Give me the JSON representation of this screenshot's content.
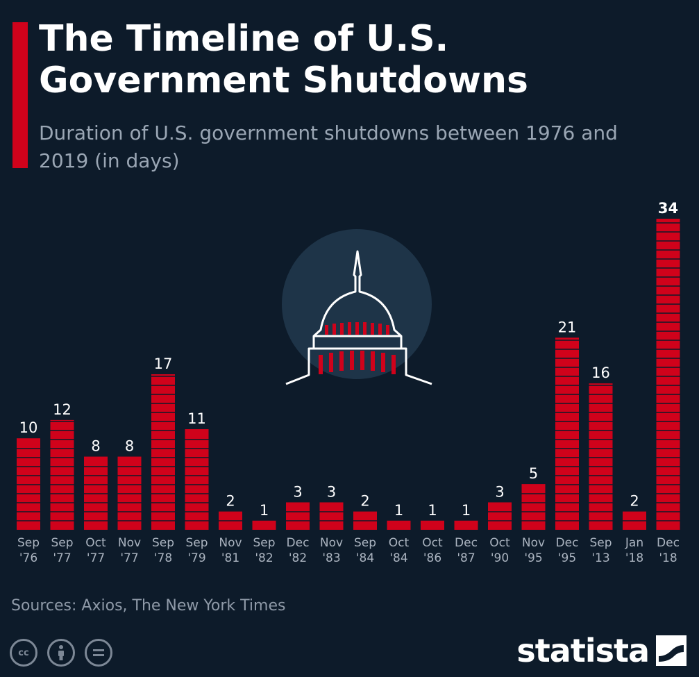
{
  "header": {
    "title": "The Timeline of U.S. Government Shutdowns",
    "subtitle": "Duration of U.S. government shutdowns between 1976 and 2019 (in days)"
  },
  "footer": {
    "source": "Sources: Axios, The New York Times",
    "brand": "statista",
    "license_icons": [
      "cc-icon",
      "person-icon",
      "equals-icon"
    ]
  },
  "colors": {
    "background": "#0d1b2a",
    "bar": "#d0021b",
    "accent": "#d0021b",
    "subtitle": "#9aa6b4"
  },
  "chart_data": {
    "type": "bar",
    "title": "The Timeline of U.S. Government Shutdowns",
    "subtitle": "Duration of U.S. government shutdowns between 1976 and 2019 (in days)",
    "xlabel": "",
    "ylabel": "",
    "categories": [
      "Sep '76",
      "Sep '77",
      "Oct '77",
      "Nov '77",
      "Sep '78",
      "Sep '79",
      "Nov '81",
      "Sep '82",
      "Dec '82",
      "Nov '83",
      "Sep '84",
      "Oct '84",
      "Oct '86",
      "Dec '87",
      "Oct '90",
      "Nov '95",
      "Dec '95",
      "Sep '13",
      "Jan '18",
      "Dec '18"
    ],
    "category_lines": [
      [
        "Sep",
        "'76"
      ],
      [
        "Sep",
        "'77"
      ],
      [
        "Oct",
        "'77"
      ],
      [
        "Nov",
        "'77"
      ],
      [
        "Sep",
        "'78"
      ],
      [
        "Sep",
        "'79"
      ],
      [
        "Nov",
        "'81"
      ],
      [
        "Sep",
        "'82"
      ],
      [
        "Dec",
        "'82"
      ],
      [
        "Nov",
        "'83"
      ],
      [
        "Sep",
        "'84"
      ],
      [
        "Oct",
        "'84"
      ],
      [
        "Oct",
        "'86"
      ],
      [
        "Dec",
        "'87"
      ],
      [
        "Oct",
        "'90"
      ],
      [
        "Nov",
        "'95"
      ],
      [
        "Dec",
        "'95"
      ],
      [
        "Sep",
        "'13"
      ],
      [
        "Jan",
        "'18"
      ],
      [
        "Dec",
        "'18"
      ]
    ],
    "values": [
      10,
      12,
      8,
      8,
      17,
      11,
      2,
      1,
      3,
      3,
      2,
      1,
      1,
      1,
      3,
      5,
      21,
      16,
      2,
      34
    ],
    "ylim": [
      0,
      34
    ],
    "grid": false,
    "legend": "none",
    "data_labels": true
  }
}
